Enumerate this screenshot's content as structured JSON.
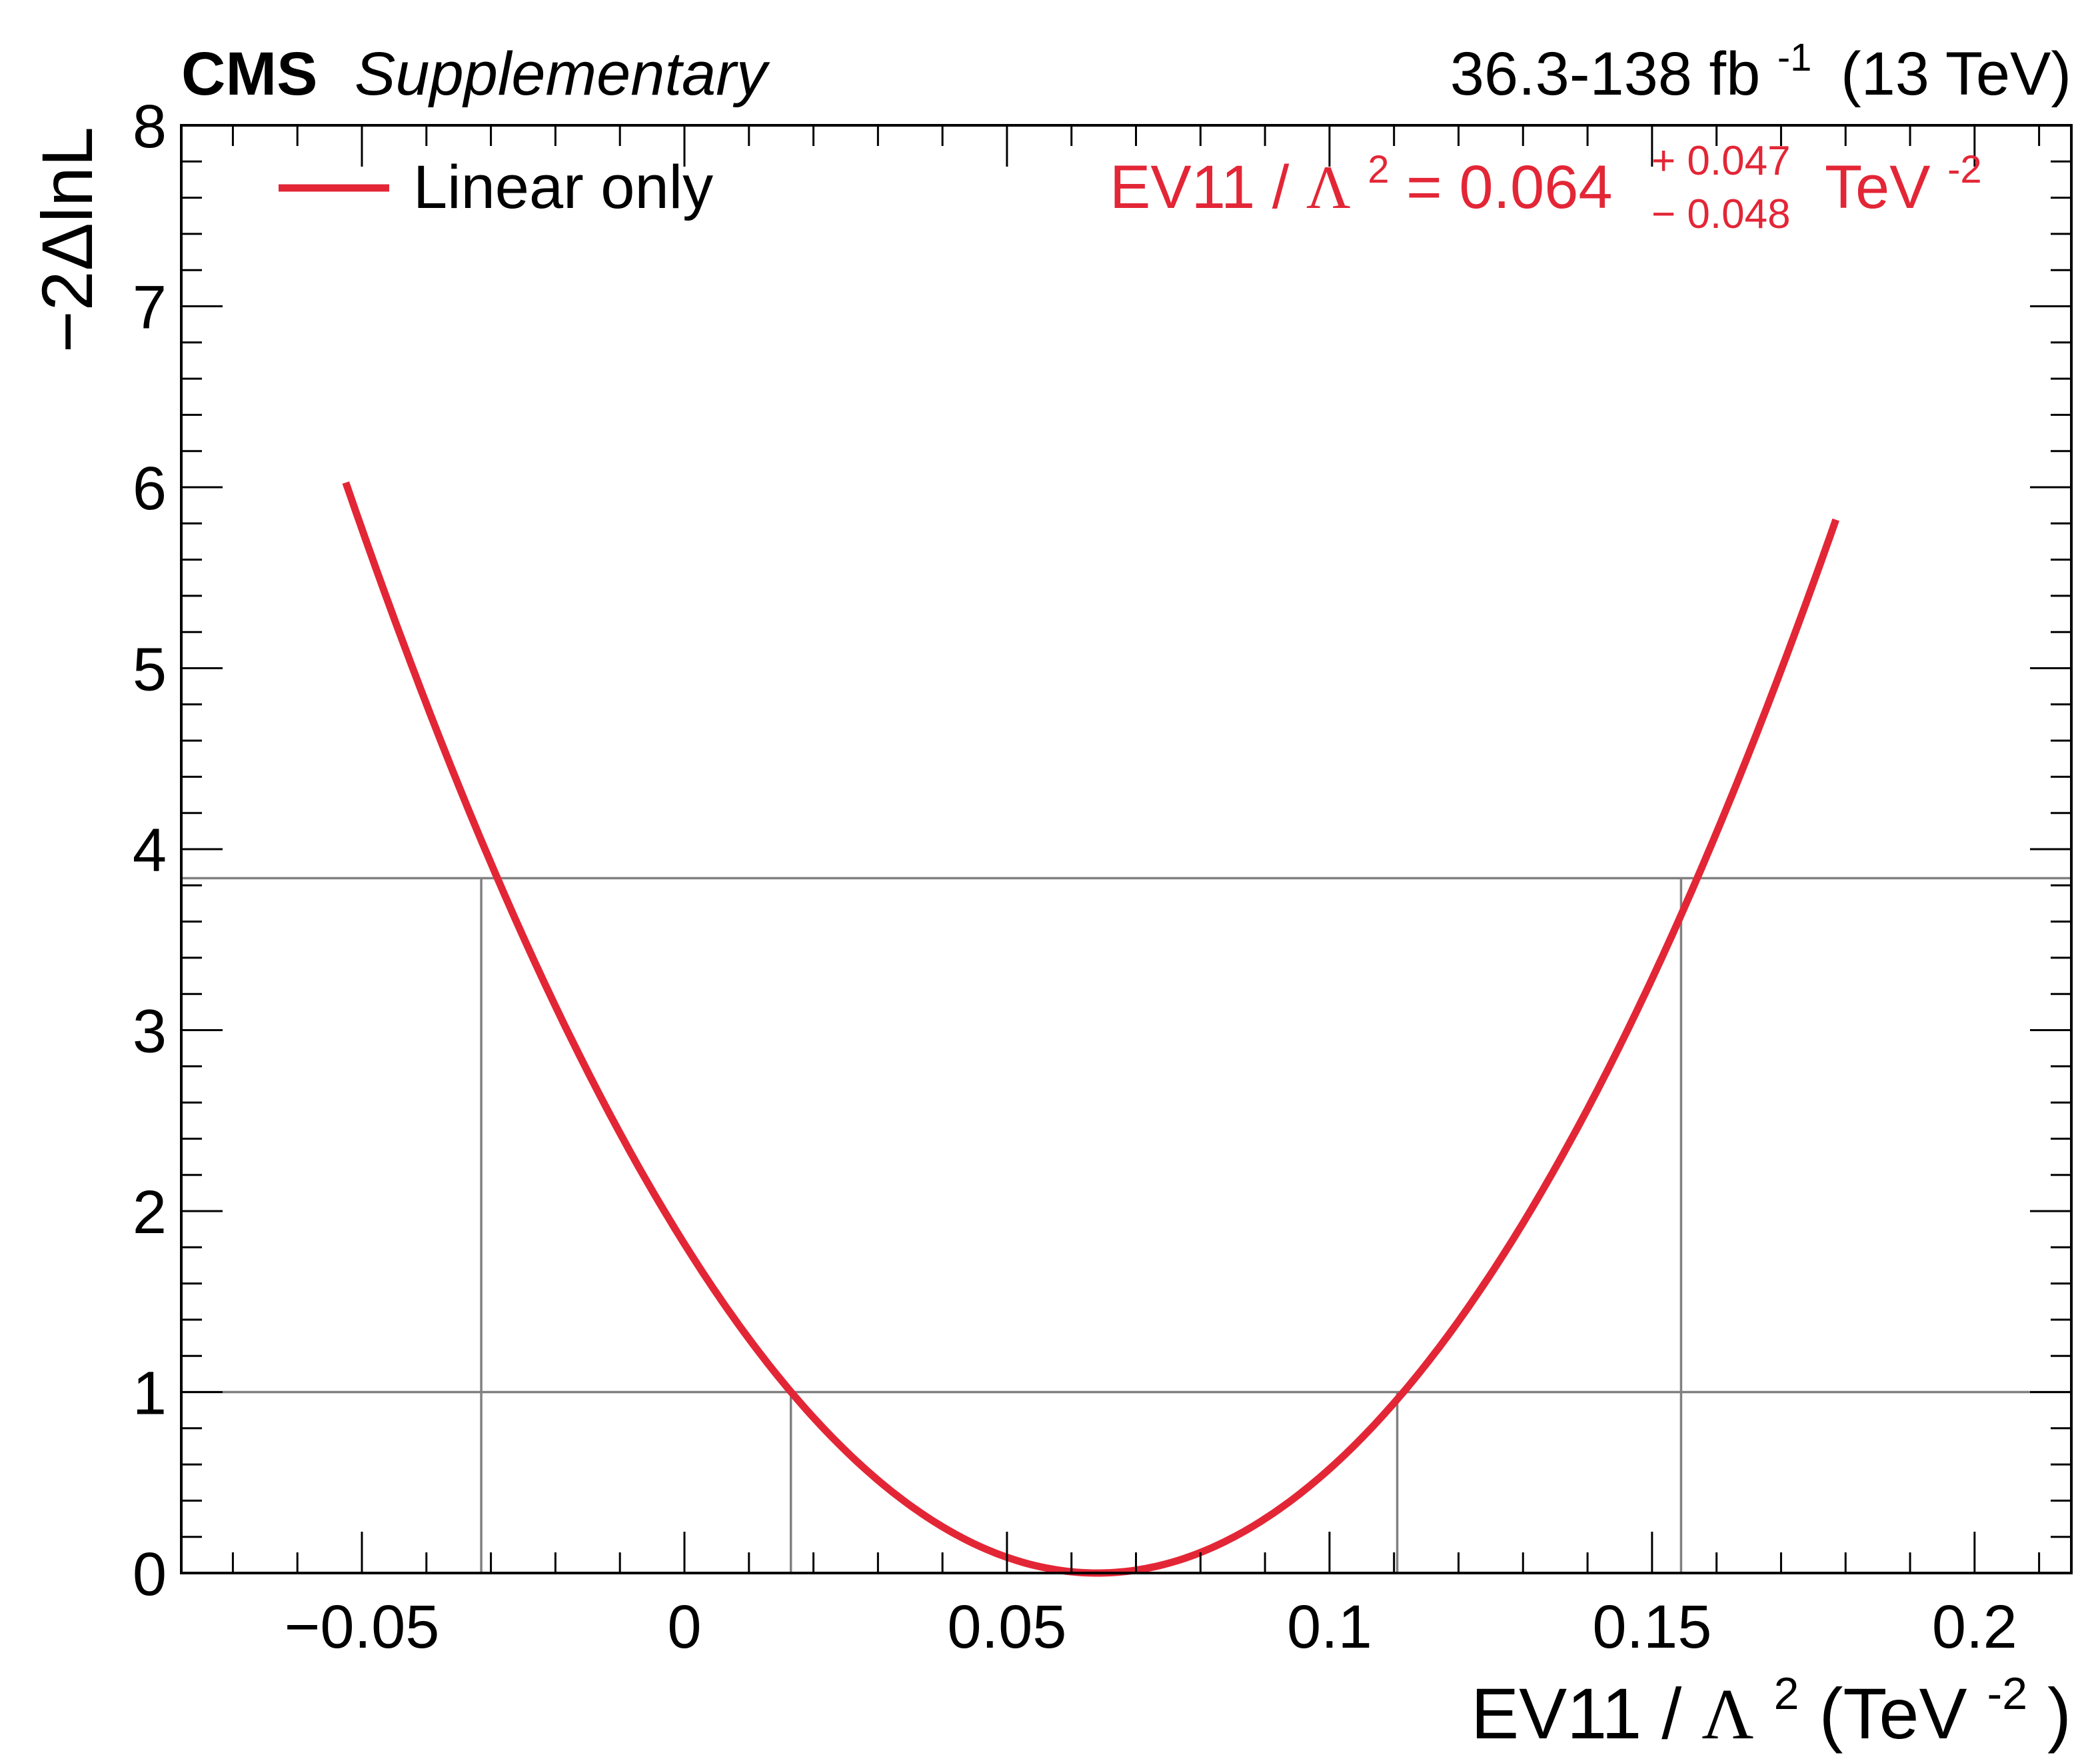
{
  "header": {
    "experiment": "CMS",
    "label": "Supplementary",
    "lumi_value": "36.3-138 fb",
    "lumi_exp": "-1",
    "energy": "(13 TeV)"
  },
  "colors": {
    "curve": "#e32636",
    "reference_lines": "#808080",
    "axes": "#000000"
  },
  "chart_data": {
    "type": "line",
    "xlabel": "EV11 / Λ² (TeV⁻²)",
    "ylabel": "−2ΔlnL",
    "xlim": [
      -0.078,
      0.215
    ],
    "ylim": [
      0,
      8
    ],
    "x_ticks": [
      {
        "value": -0.05,
        "label": "−0.05"
      },
      {
        "value": 0,
        "label": "0"
      },
      {
        "value": 0.05,
        "label": "0.05"
      },
      {
        "value": 0.1,
        "label": "0.1"
      },
      {
        "value": 0.15,
        "label": "0.15"
      },
      {
        "value": 0.2,
        "label": "0.2"
      }
    ],
    "y_ticks": [
      {
        "value": 0,
        "label": "0"
      },
      {
        "value": 1,
        "label": "1"
      },
      {
        "value": 2,
        "label": "2"
      },
      {
        "value": 3,
        "label": "3"
      },
      {
        "value": 4,
        "label": "4"
      },
      {
        "value": 5,
        "label": "5"
      },
      {
        "value": 6,
        "label": "6"
      },
      {
        "value": 7,
        "label": "7"
      },
      {
        "value": 8,
        "label": "8"
      }
    ],
    "series": [
      {
        "name": "Linear only",
        "color": "#e32636",
        "x": [
          -0.0525,
          -0.045,
          -0.04,
          -0.035,
          -0.0315,
          -0.025,
          -0.02,
          -0.015,
          -0.01,
          -0.005,
          0.0,
          0.005,
          0.01,
          0.0165,
          0.02,
          0.025,
          0.03,
          0.035,
          0.04,
          0.045,
          0.05,
          0.055,
          0.06,
          0.064,
          0.07,
          0.075,
          0.08,
          0.085,
          0.09,
          0.095,
          0.1,
          0.105,
          0.1105,
          0.115,
          0.12,
          0.125,
          0.13,
          0.135,
          0.14,
          0.145,
          0.1545,
          0.16,
          0.165,
          0.17,
          0.1785
        ],
        "y": [
          5.94,
          5.28,
          4.74,
          4.24,
          3.84,
          3.28,
          2.86,
          2.47,
          2.11,
          1.78,
          1.47,
          1.19,
          0.94,
          0.99,
          0.85,
          0.67,
          0.5,
          0.36,
          0.24,
          0.15,
          0.08,
          0.03,
          0.007,
          0.0,
          0.015,
          0.05,
          0.11,
          0.19,
          0.29,
          0.42,
          0.58,
          0.75,
          0.98,
          1.17,
          1.41,
          1.68,
          1.97,
          2.29,
          2.63,
          3.0,
          3.84,
          4.21,
          4.63,
          5.07,
          5.94
        ]
      }
    ],
    "reference_lines": {
      "horizontal": [
        1.0,
        3.84
      ],
      "vertical_68": [
        0.0165,
        0.1105
      ],
      "vertical_95": [
        -0.0315,
        0.1545
      ]
    },
    "legend": {
      "position": "top-left",
      "entries": [
        "Linear only"
      ]
    },
    "annotation": {
      "prefix": "EV11 / ",
      "symbol": "Λ",
      "symbol_exp": "2",
      "equals": " = 0.064",
      "up": "+ 0.047",
      "down": "− 0.048",
      "unit": "TeV",
      "unit_exp": "-2",
      "position": "top-right"
    },
    "xlabel_parts": {
      "prefix": "EV11 / ",
      "symbol": "Λ",
      "symbol_exp": "2",
      "unit_open": " (TeV",
      "unit_exp": "-2",
      "unit_close": ")"
    }
  }
}
